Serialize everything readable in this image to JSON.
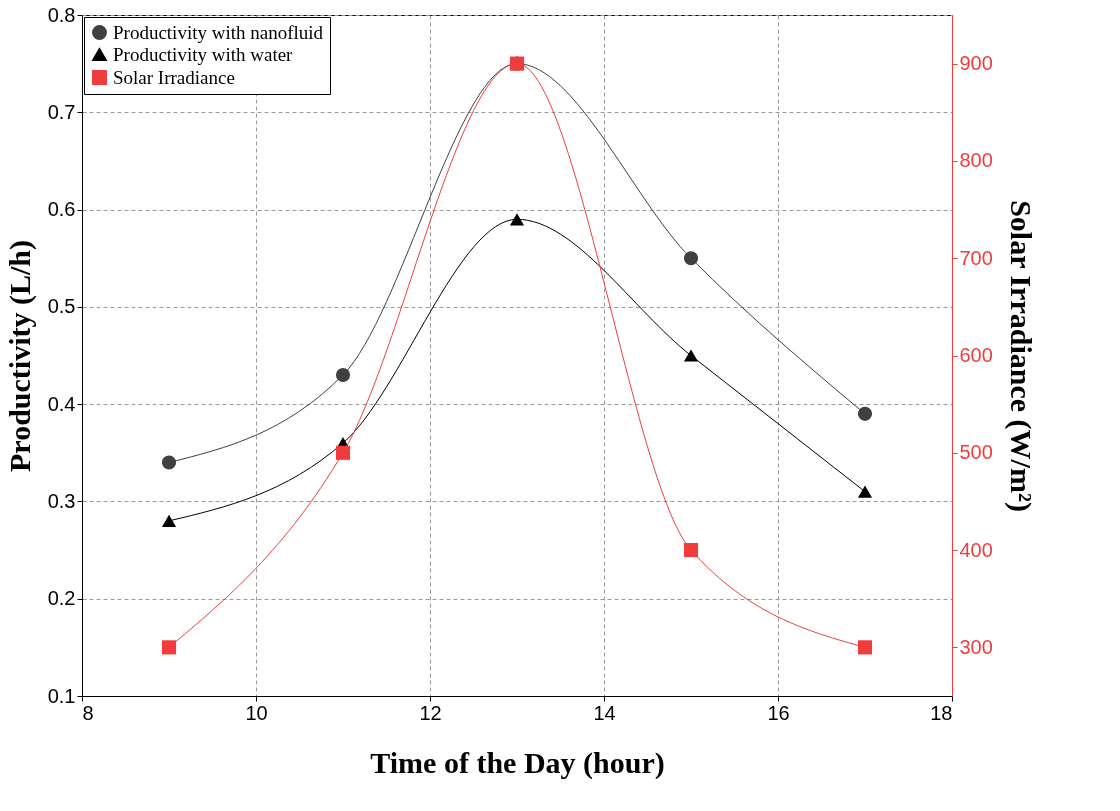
{
  "chart_data": {
    "type": "line",
    "xlabel": "Time of the Day (hour)",
    "ylabel": "Productivity (L/h)",
    "y2label": "Solar Irradiance (W/m²)",
    "x": [
      9,
      11,
      13,
      15,
      17
    ],
    "series": [
      {
        "name": "Productivity with nanofluid",
        "color": "#404040",
        "marker": "circle",
        "values": [
          0.34,
          0.43,
          0.75,
          0.55,
          0.39
        ]
      },
      {
        "name": "Productivity with water",
        "color": "#000000",
        "marker": "triangle",
        "values": [
          0.28,
          0.36,
          0.59,
          0.45,
          0.31
        ]
      },
      {
        "name": "Solar Irradiance",
        "color": "#f03c3c",
        "marker": "square",
        "axis": "y2",
        "values": [
          300,
          500,
          900,
          400,
          300
        ]
      }
    ],
    "xlim": [
      8,
      18
    ],
    "xticks": [
      8,
      10,
      12,
      14,
      16,
      18
    ],
    "ylim": [
      0.1,
      0.8
    ],
    "yticks": [
      0.1,
      0.2,
      0.3,
      0.4,
      0.5,
      0.6,
      0.7,
      0.8
    ],
    "y2lim": [
      250,
      950
    ],
    "y2ticks": [
      300,
      400,
      500,
      600,
      700,
      800,
      900
    ],
    "grid": true,
    "legend": "top left",
    "line_style": "solid"
  }
}
